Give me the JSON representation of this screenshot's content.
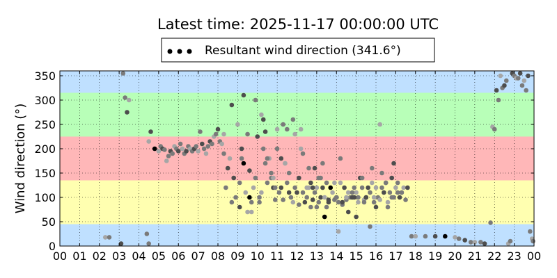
{
  "chart_data": {
    "type": "scatter",
    "title": "Latest time: 2025-11-17 00:00:00 UTC",
    "xlabel": "",
    "ylabel": "Wind direction (°)",
    "xlim": [
      0,
      24
    ],
    "ylim": [
      0,
      360
    ],
    "grid": true,
    "legend_position": "top-center (above plot)",
    "x_tick_labels": [
      "00",
      "01",
      "02",
      "03",
      "04",
      "05",
      "06",
      "07",
      "08",
      "09",
      "10",
      "11",
      "12",
      "13",
      "14",
      "15",
      "16",
      "17",
      "18",
      "19",
      "20",
      "21",
      "22",
      "23",
      "00"
    ],
    "y_ticks": [
      0,
      50,
      100,
      150,
      200,
      250,
      300,
      350
    ],
    "bands": [
      {
        "from": 0,
        "to": 45,
        "color": "#bfe0ff"
      },
      {
        "from": 45,
        "to": 135,
        "color": "#ffffb0"
      },
      {
        "from": 135,
        "to": 225,
        "color": "#ffb7b8"
      },
      {
        "from": 225,
        "to": 315,
        "color": "#b8ffb8"
      },
      {
        "from": 315,
        "to": 360,
        "color": "#bfe0ff"
      }
    ],
    "series": [
      {
        "name": "Resultant wind direction (341.6°)",
        "color": "#000000",
        "marker_colors": [
          "#000000",
          "#4d4d4d",
          "#7a7a7a",
          "#a6a6a6"
        ],
        "points_x_hours": [
          2.3,
          2.5,
          3.1,
          3.3,
          3.5,
          3.2,
          3.4,
          4.4,
          4.5,
          4.5,
          4.6,
          4.8,
          5.0,
          5.1,
          5.2,
          5.3,
          5.4,
          5.5,
          5.6,
          5.7,
          5.8,
          5.9,
          6.0,
          6.1,
          6.2,
          6.3,
          6.4,
          6.5,
          6.6,
          6.7,
          6.8,
          6.9,
          7.0,
          7.1,
          7.2,
          7.3,
          7.4,
          7.5,
          7.6,
          7.7,
          7.8,
          7.9,
          8.0,
          8.1,
          8.2,
          8.3,
          8.5,
          8.4,
          8.6,
          8.7,
          8.8,
          8.9,
          9.0,
          9.1,
          9.2,
          9.3,
          9.4,
          9.5,
          9.6,
          9.7,
          9.8,
          9.9,
          10.0,
          10.1,
          10.2,
          10.3,
          10.4,
          10.5,
          10.6,
          10.7,
          10.8,
          10.9,
          11.0,
          11.1,
          11.2,
          11.3,
          11.4,
          11.5,
          11.6,
          11.7,
          11.8,
          11.9,
          12.0,
          12.1,
          12.2,
          12.3,
          12.4,
          12.5,
          12.6,
          12.7,
          12.8,
          12.9,
          13.0,
          13.1,
          13.2,
          13.3,
          13.4,
          13.5,
          13.6,
          13.7,
          13.8,
          13.9,
          14.0,
          14.1,
          14.2,
          14.3,
          14.4,
          14.5,
          14.6,
          14.7,
          14.8,
          14.9,
          15.0,
          15.1,
          15.2,
          15.3,
          15.4,
          15.5,
          15.6,
          15.7,
          15.8,
          15.9,
          16.0,
          16.1,
          16.2,
          16.3,
          16.4,
          16.5,
          16.6,
          16.7,
          16.8,
          16.9,
          17.0,
          17.1,
          17.2,
          17.3,
          17.4,
          17.5,
          17.6,
          17.8,
          18.0,
          18.5,
          19.0,
          19.5,
          20.0,
          20.2,
          20.5,
          20.8,
          21.0,
          21.3,
          21.5,
          21.8,
          21.9,
          22.0,
          22.1,
          22.2,
          22.3,
          22.4,
          22.5,
          22.6,
          22.7,
          22.8,
          22.9,
          23.0,
          23.1,
          23.2,
          23.3,
          23.4,
          23.5,
          23.6,
          23.7,
          23.8,
          23.9,
          23.95,
          9.3,
          10.7,
          12.5,
          14.2,
          15.5,
          11.8,
          13.9,
          10.1,
          12.9,
          14.8,
          9.7,
          16.3,
          11.2,
          13.4,
          15.1,
          10.4,
          12.1,
          16.6,
          14.5,
          11.5,
          9.1,
          13.1,
          15.9,
          10.9,
          12.7,
          14.0,
          16.0,
          11.0,
          13.6,
          15.3,
          9.5,
          12.3,
          14.9,
          10.5,
          11.9,
          16.8,
          13.3,
          15.7,
          10.2,
          12.6,
          14.3,
          9.9,
          11.4,
          13.0,
          15.0,
          16.5,
          8.3,
          9.2,
          10.3,
          11.6,
          12.2,
          13.5,
          14.6,
          15.8,
          16.2,
          17.3,
          8.7,
          9.6,
          10.8,
          11.3,
          12.8,
          13.2,
          14.1,
          15.4,
          16.9,
          17.1
        ],
        "points_y_deg": [
          18,
          18,
          5,
          305,
          300,
          355,
          275,
          25,
          215,
          5,
          235,
          200,
          195,
          205,
          200,
          198,
          175,
          185,
          195,
          190,
          205,
          200,
          195,
          210,
          200,
          190,
          195,
          205,
          200,
          195,
          200,
          205,
          195,
          235,
          210,
          200,
          190,
          205,
          215,
          210,
          225,
          230,
          240,
          215,
          210,
          190,
          160,
          120,
          180,
          90,
          140,
          100,
          250,
          130,
          200,
          170,
          110,
          230,
          155,
          90,
          120,
          140,
          225,
          100,
          110,
          200,
          235,
          130,
          180,
          150,
          120,
          95,
          240,
          110,
          120,
          95,
          170,
          130,
          110,
          100,
          90,
          120,
          110,
          85,
          200,
          110,
          90,
          100,
          120,
          80,
          95,
          110,
          120,
          90,
          100,
          170,
          100,
          80,
          95,
          120,
          110,
          95,
          100,
          90,
          130,
          85,
          120,
          95,
          110,
          100,
          100,
          120,
          110,
          100,
          140,
          120,
          95,
          100,
          120,
          110,
          130,
          90,
          80,
          100,
          95,
          120,
          110,
          130,
          90,
          110,
          140,
          100,
          120,
          130,
          100,
          110,
          120,
          95,
          120,
          20,
          20,
          20,
          20,
          20,
          18,
          15,
          12,
          8,
          8,
          8,
          5,
          48,
          245,
          240,
          320,
          300,
          350,
          325,
          330,
          340,
          5,
          10,
          355,
          350,
          345,
          345,
          355,
          330,
          340,
          320,
          350,
          30,
          15,
          10,
          310,
          140,
          120,
          180,
          100,
          260,
          130,
          90,
          160,
          110,
          70,
          150,
          180,
          60,
          90,
          170,
          140,
          80,
          100,
          240,
          80,
          140,
          100,
          120,
          130,
          100,
          120,
          200,
          90,
          140,
          70,
          190,
          100,
          180,
          230,
          100,
          120,
          40,
          270,
          160,
          90,
          300,
          170,
          80,
          60,
          130,
          230,
          180,
          260,
          150,
          240,
          130,
          70,
          160,
          250,
          110,
          290,
          100,
          140,
          250,
          120,
          140,
          30,
          90,
          170,
          110
        ]
      }
    ]
  },
  "legend": {
    "label": "Resultant wind direction (341.6°)"
  }
}
